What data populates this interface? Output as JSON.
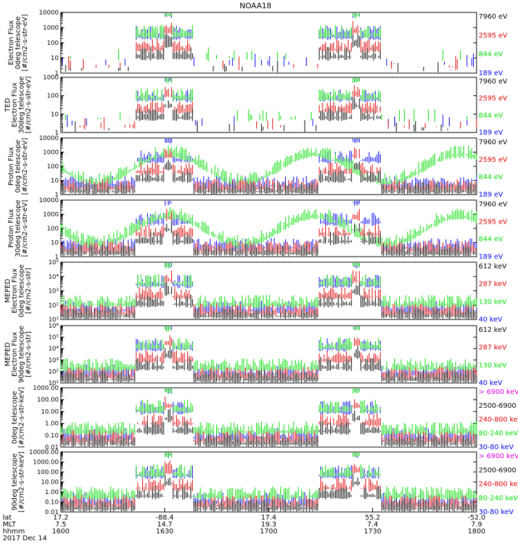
{
  "title": "NOAA18",
  "colors": {
    "black": "#000000",
    "red": "#e00000",
    "green": "#00dd00",
    "blue": "#0000ee",
    "magenta": "#dd00dd"
  },
  "chart_data": [
    {
      "type": "line",
      "ylabel": [
        "Electron Flux",
        "0deg telescope",
        "[#/cm2-s-str-eV]"
      ],
      "yscale": "log",
      "ylim": [
        1,
        10000
      ],
      "ticks": [
        "10000",
        "1000",
        "100",
        "10",
        "1"
      ],
      "legend": [
        {
          "text": "7960 eV",
          "color": "black"
        },
        {
          "text": "2595 eV",
          "color": "red"
        },
        {
          "text": "844 eV",
          "color": "green"
        },
        {
          "text": "189 eV",
          "color": "blue"
        }
      ]
    },
    {
      "type": "line",
      "ylabel": [
        "TED",
        "Electron Flux",
        "30deg telescope",
        "[#/cm2-s-str-eV]"
      ],
      "yscale": "log",
      "ylim": [
        1,
        1000
      ],
      "ticks": [
        "1000",
        "100",
        "10",
        "1"
      ],
      "legend": [
        {
          "text": "7960 eV",
          "color": "black"
        },
        {
          "text": "2595 eV",
          "color": "red"
        },
        {
          "text": "844 eV",
          "color": "green"
        },
        {
          "text": "189 eV",
          "color": "blue"
        }
      ]
    },
    {
      "type": "line",
      "ylabel": [
        "Proton Flux",
        "0deg telescope",
        "[#/cm2-s-str-eV]"
      ],
      "yscale": "log",
      "ylim": [
        1,
        10000
      ],
      "ticks": [
        "10000",
        "1000",
        "100",
        "10",
        "1"
      ],
      "legend": [
        {
          "text": "7960 eV",
          "color": "black"
        },
        {
          "text": "2595 eV",
          "color": "red"
        },
        {
          "text": "844 eV",
          "color": "green"
        },
        {
          "text": "189 eV",
          "color": "blue"
        }
      ]
    },
    {
      "type": "line",
      "ylabel": [
        "Proton Flux",
        "30deg telescope",
        "[#/cm2-s-str-eV]"
      ],
      "yscale": "log",
      "ylim": [
        1,
        10000
      ],
      "ticks": [
        "10000",
        "1000",
        "100",
        "10",
        "1"
      ],
      "legend": [
        {
          "text": "7960 eV",
          "color": "black"
        },
        {
          "text": "2595 eV",
          "color": "red"
        },
        {
          "text": "844 eV",
          "color": "green"
        },
        {
          "text": "189 eV",
          "color": "blue"
        }
      ]
    },
    {
      "type": "line",
      "ylabel": [
        "MEPED",
        "Electron Flux",
        "0deg telescope",
        "[#/cm2-s-str]"
      ],
      "yscale": "log",
      "ylim": [
        10,
        100000
      ],
      "ticks": [
        "10⁵",
        "10⁴",
        "10³",
        "10²",
        "10¹"
      ],
      "legend": [
        {
          "text": "612 keV",
          "color": "black"
        },
        {
          "text": "287 keV",
          "color": "red"
        },
        {
          "text": "130 keV",
          "color": "green"
        },
        {
          "text": "40 keV",
          "color": "blue"
        }
      ]
    },
    {
      "type": "line",
      "ylabel": [
        "MEPED",
        "Electron Flux",
        "90deg telescope",
        "[#/cm2-s-str]"
      ],
      "yscale": "log",
      "ylim": [
        10,
        1000000
      ],
      "ticks": [
        "10⁶",
        "10⁵",
        "10⁴",
        "10³",
        "10²",
        "10¹"
      ],
      "legend": [
        {
          "text": "612 keV",
          "color": "black"
        },
        {
          "text": "287 keV",
          "color": "red"
        },
        {
          "text": "130 keV",
          "color": "green"
        },
        {
          "text": "40 keV",
          "color": "blue"
        }
      ]
    },
    {
      "type": "line",
      "ylabel": [
        "0deg telescope",
        "[#/cm2-s-str-keV]"
      ],
      "yscale": "log",
      "ylim": [
        0.01,
        1000
      ],
      "ticks": [
        "1000.00",
        "100.00",
        "10.00",
        "1.00",
        "0.10",
        "0.01"
      ],
      "legend": [
        {
          "text": "> 6900 keV",
          "color": "magenta"
        },
        {
          "text": "2500-6900",
          "color": "black"
        },
        {
          "text": "240-800 keV",
          "color": "red"
        },
        {
          "text": "80-240 keV",
          "color": "green"
        },
        {
          "text": "30-80 keV",
          "color": "blue"
        }
      ]
    },
    {
      "type": "line",
      "ylabel": [
        "90deg telescope",
        "[#/cm2-s-str-keV]"
      ],
      "yscale": "log",
      "ylim": [
        0.01,
        10000
      ],
      "ticks": [
        "10000.00",
        "1000.00",
        "100.00",
        "10.00",
        "1.00",
        "0.10",
        "0.01"
      ],
      "legend": [
        {
          "text": "> 6900 keV",
          "color": "magenta"
        },
        {
          "text": "2500-6900",
          "color": "black"
        },
        {
          "text": "240-800 keV",
          "color": "red"
        },
        {
          "text": "80-240 keV",
          "color": "green"
        },
        {
          "text": "30-80 keV",
          "color": "blue"
        }
      ]
    }
  ],
  "x_axis": {
    "row_labels": [
      "lat",
      "MLT",
      "hhmm",
      "2017 Dec 14"
    ],
    "columns": [
      {
        "lat": "17.2",
        "mlt": "7.5",
        "hhmm": "1600"
      },
      {
        "lat": "-88.4",
        "mlt": "14.7",
        "hhmm": "1630"
      },
      {
        "lat": "17.4",
        "mlt": "19.3",
        "hhmm": "1700"
      },
      {
        "lat": "55.2",
        "mlt": "7.4",
        "hhmm": "1730"
      },
      {
        "lat": "-52.0",
        "mlt": "7.9",
        "hhmm": "1800"
      }
    ]
  }
}
